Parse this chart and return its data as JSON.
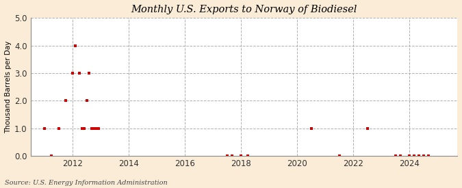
{
  "title": "Monthly U.S. Exports to Norway of Biodiesel",
  "ylabel": "Thousand Barrels per Day",
  "source": "Source: U.S. Energy Information Administration",
  "background_color": "#faecd7",
  "plot_background_color": "#ffffff",
  "marker_color": "#cc0000",
  "marker": "s",
  "markersize": 3.5,
  "ylim": [
    0,
    5.0
  ],
  "yticks": [
    0.0,
    1.0,
    2.0,
    3.0,
    4.0,
    5.0
  ],
  "xlim_start": 2010.5,
  "xlim_end": 2025.7,
  "xticks": [
    2012,
    2014,
    2016,
    2018,
    2020,
    2022,
    2024
  ],
  "data_points": [
    [
      2011.0,
      1.0
    ],
    [
      2011.25,
      0.0
    ],
    [
      2011.5,
      1.0
    ],
    [
      2011.75,
      2.0
    ],
    [
      2012.0,
      3.0
    ],
    [
      2012.083,
      4.0
    ],
    [
      2012.25,
      3.0
    ],
    [
      2012.33,
      1.0
    ],
    [
      2012.42,
      1.0
    ],
    [
      2012.5,
      2.0
    ],
    [
      2012.58,
      3.0
    ],
    [
      2012.67,
      1.0
    ],
    [
      2012.75,
      1.0
    ],
    [
      2012.83,
      1.0
    ],
    [
      2012.92,
      1.0
    ],
    [
      2017.5,
      0.0
    ],
    [
      2017.67,
      0.0
    ],
    [
      2018.0,
      0.0
    ],
    [
      2018.25,
      0.0
    ],
    [
      2020.5,
      1.0
    ],
    [
      2021.5,
      0.0
    ],
    [
      2022.5,
      1.0
    ],
    [
      2023.5,
      0.0
    ],
    [
      2023.67,
      0.0
    ],
    [
      2024.0,
      0.0
    ],
    [
      2024.17,
      0.0
    ],
    [
      2024.33,
      0.0
    ],
    [
      2024.5,
      0.0
    ],
    [
      2024.67,
      0.0
    ]
  ],
  "title_fontsize": 10.5,
  "tick_fontsize": 8.5,
  "ylabel_fontsize": 7.5,
  "source_fontsize": 7
}
